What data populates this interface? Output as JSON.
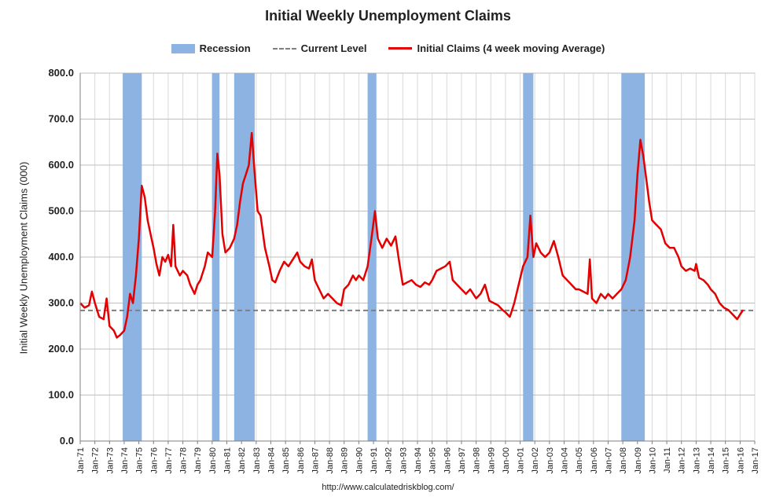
{
  "chart_data": {
    "type": "line",
    "title": "Initial Weekly Unemployment Claims",
    "ylabel": "Initial Weekly Unemployment Claims (000)",
    "xlabel": "",
    "ylim": [
      0,
      800
    ],
    "xlim": [
      1971.0,
      2017.0
    ],
    "grid": true,
    "legend_position": "top",
    "yticks": [
      "0.0",
      "100.0",
      "200.0",
      "300.0",
      "400.0",
      "500.0",
      "600.0",
      "700.0",
      "800.0"
    ],
    "xticks": [
      "Jan-71",
      "Jan-72",
      "Jan-73",
      "Jan-74",
      "Jan-75",
      "Jan-76",
      "Jan-77",
      "Jan-78",
      "Jan-79",
      "Jan-80",
      "Jan-81",
      "Jan-82",
      "Jan-83",
      "Jan-84",
      "Jan-85",
      "Jan-86",
      "Jan-87",
      "Jan-88",
      "Jan-89",
      "Jan-90",
      "Jan-91",
      "Jan-92",
      "Jan-93",
      "Jan-94",
      "Jan-95",
      "Jan-96",
      "Jan-97",
      "Jan-98",
      "Jan-99",
      "Jan-00",
      "Jan-01",
      "Jan-02",
      "Jan-03",
      "Jan-04",
      "Jan-05",
      "Jan-06",
      "Jan-07",
      "Jan-08",
      "Jan-09",
      "Jan-10",
      "Jan-11",
      "Jan-12",
      "Jan-13",
      "Jan-14",
      "Jan-15",
      "Jan-16",
      "Jan-17"
    ],
    "legend": [
      "Recession",
      "Current Level",
      "Initial Claims (4 week moving Average)"
    ],
    "colors": {
      "recession": "#8db3e2",
      "current": "#7f7f7f",
      "claims": "#e30000"
    },
    "recessions": [
      [
        1973.9,
        1975.2
      ],
      [
        1980.0,
        1980.5
      ],
      [
        1981.5,
        1982.9
      ],
      [
        1990.6,
        1991.2
      ],
      [
        2001.2,
        2001.9
      ],
      [
        2007.9,
        2009.5
      ]
    ],
    "current_level": 284,
    "series": [
      {
        "name": "Initial Claims (4 week moving Average)",
        "points": [
          [
            1971.0,
            300
          ],
          [
            1971.3,
            290
          ],
          [
            1971.6,
            295
          ],
          [
            1971.8,
            325
          ],
          [
            1972.0,
            300
          ],
          [
            1972.3,
            270
          ],
          [
            1972.6,
            265
          ],
          [
            1972.8,
            310
          ],
          [
            1973.0,
            250
          ],
          [
            1973.3,
            240
          ],
          [
            1973.5,
            225
          ],
          [
            1973.7,
            230
          ],
          [
            1974.0,
            240
          ],
          [
            1974.2,
            270
          ],
          [
            1974.4,
            320
          ],
          [
            1974.6,
            300
          ],
          [
            1974.8,
            360
          ],
          [
            1975.0,
            440
          ],
          [
            1975.2,
            555
          ],
          [
            1975.4,
            530
          ],
          [
            1975.6,
            480
          ],
          [
            1975.8,
            450
          ],
          [
            1976.0,
            420
          ],
          [
            1976.2,
            385
          ],
          [
            1976.4,
            360
          ],
          [
            1976.6,
            400
          ],
          [
            1976.8,
            390
          ],
          [
            1977.0,
            405
          ],
          [
            1977.2,
            380
          ],
          [
            1977.35,
            470
          ],
          [
            1977.5,
            380
          ],
          [
            1977.8,
            360
          ],
          [
            1978.0,
            370
          ],
          [
            1978.3,
            360
          ],
          [
            1978.5,
            340
          ],
          [
            1978.8,
            320
          ],
          [
            1979.0,
            340
          ],
          [
            1979.2,
            350
          ],
          [
            1979.5,
            380
          ],
          [
            1979.7,
            410
          ],
          [
            1980.0,
            400
          ],
          [
            1980.2,
            500
          ],
          [
            1980.35,
            625
          ],
          [
            1980.5,
            580
          ],
          [
            1980.7,
            450
          ],
          [
            1980.9,
            410
          ],
          [
            1981.2,
            420
          ],
          [
            1981.5,
            440
          ],
          [
            1981.7,
            470
          ],
          [
            1981.9,
            520
          ],
          [
            1982.1,
            560
          ],
          [
            1982.3,
            580
          ],
          [
            1982.5,
            600
          ],
          [
            1982.7,
            670
          ],
          [
            1982.9,
            580
          ],
          [
            1983.1,
            500
          ],
          [
            1983.3,
            490
          ],
          [
            1983.6,
            420
          ],
          [
            1983.9,
            380
          ],
          [
            1984.1,
            350
          ],
          [
            1984.3,
            345
          ],
          [
            1984.6,
            370
          ],
          [
            1984.9,
            390
          ],
          [
            1985.2,
            380
          ],
          [
            1985.5,
            395
          ],
          [
            1985.8,
            410
          ],
          [
            1986.0,
            390
          ],
          [
            1986.3,
            380
          ],
          [
            1986.6,
            375
          ],
          [
            1986.8,
            395
          ],
          [
            1987.0,
            350
          ],
          [
            1987.3,
            330
          ],
          [
            1987.6,
            310
          ],
          [
            1987.9,
            320
          ],
          [
            1988.2,
            310
          ],
          [
            1988.5,
            300
          ],
          [
            1988.8,
            295
          ],
          [
            1989.0,
            330
          ],
          [
            1989.3,
            340
          ],
          [
            1989.6,
            360
          ],
          [
            1989.8,
            350
          ],
          [
            1990.0,
            360
          ],
          [
            1990.3,
            350
          ],
          [
            1990.6,
            380
          ],
          [
            1990.9,
            450
          ],
          [
            1991.1,
            500
          ],
          [
            1991.3,
            440
          ],
          [
            1991.6,
            420
          ],
          [
            1991.9,
            440
          ],
          [
            1992.2,
            425
          ],
          [
            1992.5,
            445
          ],
          [
            1992.7,
            400
          ],
          [
            1993.0,
            340
          ],
          [
            1993.3,
            345
          ],
          [
            1993.6,
            350
          ],
          [
            1993.9,
            340
          ],
          [
            1994.2,
            335
          ],
          [
            1994.5,
            345
          ],
          [
            1994.8,
            340
          ],
          [
            1995.0,
            350
          ],
          [
            1995.3,
            370
          ],
          [
            1995.6,
            375
          ],
          [
            1995.9,
            380
          ],
          [
            1996.2,
            390
          ],
          [
            1996.4,
            350
          ],
          [
            1996.7,
            340
          ],
          [
            1997.0,
            330
          ],
          [
            1997.3,
            320
          ],
          [
            1997.6,
            330
          ],
          [
            1998.0,
            310
          ],
          [
            1998.3,
            320
          ],
          [
            1998.6,
            340
          ],
          [
            1998.9,
            305
          ],
          [
            1999.2,
            300
          ],
          [
            1999.5,
            295
          ],
          [
            1999.8,
            285
          ],
          [
            2000.0,
            280
          ],
          [
            2000.3,
            270
          ],
          [
            2000.6,
            300
          ],
          [
            2000.9,
            340
          ],
          [
            2001.2,
            380
          ],
          [
            2001.5,
            400
          ],
          [
            2001.7,
            490
          ],
          [
            2001.9,
            400
          ],
          [
            2002.1,
            430
          ],
          [
            2002.4,
            410
          ],
          [
            2002.7,
            400
          ],
          [
            2003.0,
            410
          ],
          [
            2003.3,
            435
          ],
          [
            2003.6,
            400
          ],
          [
            2003.9,
            360
          ],
          [
            2004.2,
            350
          ],
          [
            2004.5,
            340
          ],
          [
            2004.8,
            330
          ],
          [
            2005.0,
            330
          ],
          [
            2005.3,
            325
          ],
          [
            2005.6,
            320
          ],
          [
            2005.75,
            395
          ],
          [
            2005.9,
            310
          ],
          [
            2006.2,
            300
          ],
          [
            2006.5,
            320
          ],
          [
            2006.8,
            310
          ],
          [
            2007.0,
            320
          ],
          [
            2007.3,
            310
          ],
          [
            2007.6,
            320
          ],
          [
            2007.9,
            330
          ],
          [
            2008.2,
            350
          ],
          [
            2008.5,
            400
          ],
          [
            2008.8,
            480
          ],
          [
            2009.0,
            580
          ],
          [
            2009.2,
            655
          ],
          [
            2009.4,
            620
          ],
          [
            2009.6,
            570
          ],
          [
            2009.8,
            520
          ],
          [
            2010.0,
            480
          ],
          [
            2010.3,
            470
          ],
          [
            2010.6,
            460
          ],
          [
            2010.9,
            430
          ],
          [
            2011.2,
            420
          ],
          [
            2011.5,
            420
          ],
          [
            2011.8,
            400
          ],
          [
            2012.0,
            380
          ],
          [
            2012.3,
            370
          ],
          [
            2012.6,
            375
          ],
          [
            2012.9,
            370
          ],
          [
            2013.0,
            385
          ],
          [
            2013.2,
            355
          ],
          [
            2013.5,
            350
          ],
          [
            2013.8,
            340
          ],
          [
            2014.0,
            330
          ],
          [
            2014.3,
            320
          ],
          [
            2014.6,
            300
          ],
          [
            2014.9,
            290
          ],
          [
            2015.2,
            285
          ],
          [
            2015.5,
            275
          ],
          [
            2015.8,
            265
          ],
          [
            2016.0,
            275
          ],
          [
            2016.2,
            285
          ]
        ]
      }
    ]
  },
  "source": "http://www.calculatedriskblog.com/"
}
